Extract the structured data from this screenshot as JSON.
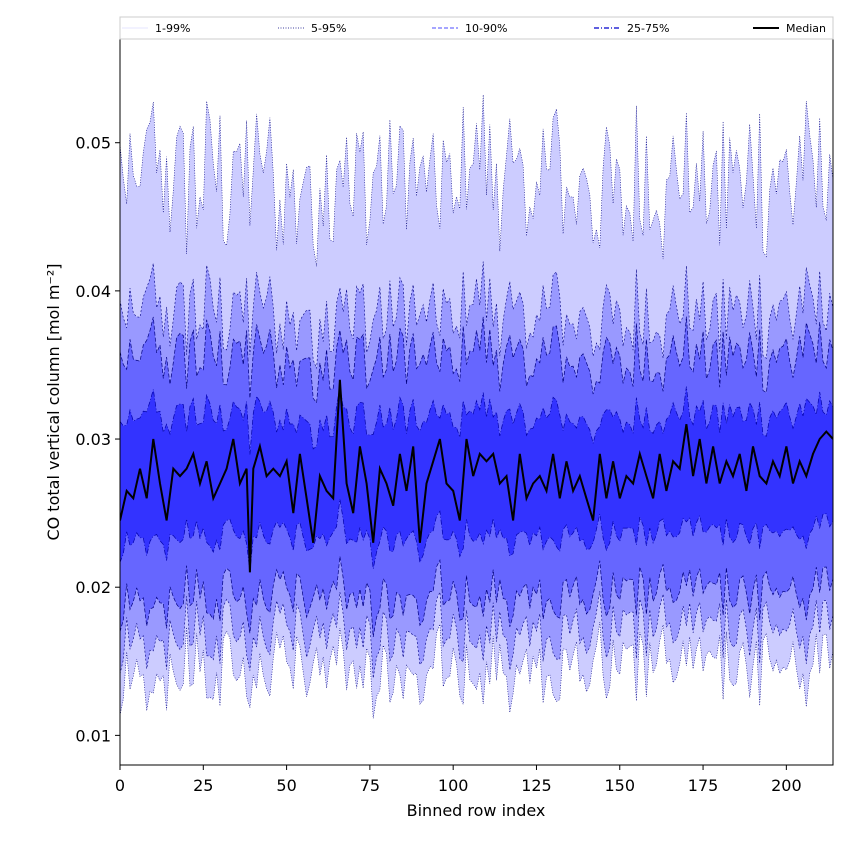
{
  "chart_data": {
    "type": "area",
    "xlabel": "Binned row index",
    "ylabel": "CO total vertical column [mol m⁻²]",
    "xlim": [
      0,
      214
    ],
    "ylim": [
      0.008,
      0.057
    ],
    "x_ticks": [
      {
        "value": 0,
        "label": "0"
      },
      {
        "value": 25,
        "label": "25"
      },
      {
        "value": 50,
        "label": "50"
      },
      {
        "value": 75,
        "label": "75"
      },
      {
        "value": 100,
        "label": "100"
      },
      {
        "value": 125,
        "label": "125"
      },
      {
        "value": 150,
        "label": "150"
      },
      {
        "value": 175,
        "label": "175"
      },
      {
        "value": 200,
        "label": "200"
      }
    ],
    "y_ticks": [
      {
        "value": 0.01,
        "label": "0.01"
      },
      {
        "value": 0.02,
        "label": "0.02"
      },
      {
        "value": 0.03,
        "label": "0.03"
      },
      {
        "value": 0.04,
        "label": "0.04"
      },
      {
        "value": 0.05,
        "label": "0.05"
      }
    ],
    "grid": false,
    "legend_position": "top",
    "legend": [
      {
        "label": "1-99%",
        "color": "#ccccff",
        "style": "solid-thin"
      },
      {
        "label": "5-95%",
        "color": "#000080",
        "style": "dotted"
      },
      {
        "label": "10-90%",
        "color": "#4d4dff",
        "style": "dashed"
      },
      {
        "label": "25-75%",
        "color": "#0000cc",
        "style": "dashdot"
      },
      {
        "label": "Median",
        "color": "#000000",
        "style": "solid-thick"
      }
    ],
    "bands": [
      {
        "name": "1-99%",
        "fill": "#ccccff",
        "lower_mean": 0.0145,
        "upper_mean": 0.0475
      },
      {
        "name": "5-95%",
        "fill": "#9999ff",
        "lower_mean": 0.017,
        "upper_mean": 0.0385
      },
      {
        "name": "10-90%",
        "fill": "#6666ff",
        "lower_mean": 0.0195,
        "upper_mean": 0.0355
      },
      {
        "name": "25-75%",
        "fill": "#3333ff",
        "lower_mean": 0.0235,
        "upper_mean": 0.0315
      }
    ],
    "median_points": [
      [
        0,
        0.0245
      ],
      [
        2,
        0.0265
      ],
      [
        4,
        0.026
      ],
      [
        6,
        0.028
      ],
      [
        8,
        0.026
      ],
      [
        10,
        0.03
      ],
      [
        12,
        0.027
      ],
      [
        14,
        0.0245
      ],
      [
        16,
        0.028
      ],
      [
        18,
        0.0275
      ],
      [
        20,
        0.028
      ],
      [
        22,
        0.029
      ],
      [
        24,
        0.027
      ],
      [
        26,
        0.0285
      ],
      [
        28,
        0.026
      ],
      [
        30,
        0.027
      ],
      [
        32,
        0.028
      ],
      [
        34,
        0.03
      ],
      [
        36,
        0.027
      ],
      [
        38,
        0.028
      ],
      [
        39,
        0.021
      ],
      [
        40,
        0.028
      ],
      [
        42,
        0.0295
      ],
      [
        44,
        0.0275
      ],
      [
        46,
        0.028
      ],
      [
        48,
        0.0275
      ],
      [
        50,
        0.0285
      ],
      [
        52,
        0.025
      ],
      [
        54,
        0.029
      ],
      [
        56,
        0.026
      ],
      [
        58,
        0.023
      ],
      [
        60,
        0.0275
      ],
      [
        62,
        0.0265
      ],
      [
        64,
        0.026
      ],
      [
        66,
        0.034
      ],
      [
        68,
        0.027
      ],
      [
        70,
        0.025
      ],
      [
        72,
        0.0295
      ],
      [
        74,
        0.027
      ],
      [
        76,
        0.023
      ],
      [
        78,
        0.028
      ],
      [
        80,
        0.027
      ],
      [
        82,
        0.0255
      ],
      [
        84,
        0.029
      ],
      [
        86,
        0.0265
      ],
      [
        88,
        0.0295
      ],
      [
        90,
        0.023
      ],
      [
        92,
        0.027
      ],
      [
        94,
        0.0285
      ],
      [
        96,
        0.03
      ],
      [
        98,
        0.027
      ],
      [
        100,
        0.0265
      ],
      [
        102,
        0.0245
      ],
      [
        104,
        0.03
      ],
      [
        106,
        0.0275
      ],
      [
        108,
        0.029
      ],
      [
        110,
        0.0285
      ],
      [
        112,
        0.029
      ],
      [
        114,
        0.027
      ],
      [
        116,
        0.0275
      ],
      [
        118,
        0.0245
      ],
      [
        120,
        0.029
      ],
      [
        122,
        0.026
      ],
      [
        124,
        0.027
      ],
      [
        126,
        0.0275
      ],
      [
        128,
        0.0265
      ],
      [
        130,
        0.029
      ],
      [
        132,
        0.026
      ],
      [
        134,
        0.0285
      ],
      [
        136,
        0.0265
      ],
      [
        138,
        0.0275
      ],
      [
        140,
        0.026
      ],
      [
        142,
        0.0245
      ],
      [
        144,
        0.029
      ],
      [
        146,
        0.026
      ],
      [
        148,
        0.0285
      ],
      [
        150,
        0.026
      ],
      [
        152,
        0.0275
      ],
      [
        154,
        0.027
      ],
      [
        156,
        0.029
      ],
      [
        158,
        0.0275
      ],
      [
        160,
        0.026
      ],
      [
        162,
        0.029
      ],
      [
        164,
        0.0265
      ],
      [
        166,
        0.0285
      ],
      [
        168,
        0.028
      ],
      [
        170,
        0.031
      ],
      [
        172,
        0.0275
      ],
      [
        174,
        0.03
      ],
      [
        176,
        0.027
      ],
      [
        178,
        0.0295
      ],
      [
        180,
        0.027
      ],
      [
        182,
        0.0285
      ],
      [
        184,
        0.0275
      ],
      [
        186,
        0.029
      ],
      [
        188,
        0.0265
      ],
      [
        190,
        0.0295
      ],
      [
        192,
        0.0275
      ],
      [
        194,
        0.027
      ],
      [
        196,
        0.0285
      ],
      [
        198,
        0.0275
      ],
      [
        200,
        0.0295
      ],
      [
        202,
        0.027
      ],
      [
        204,
        0.0285
      ],
      [
        206,
        0.0275
      ],
      [
        208,
        0.029
      ],
      [
        210,
        0.03
      ],
      [
        212,
        0.0305
      ],
      [
        214,
        0.03
      ]
    ]
  }
}
